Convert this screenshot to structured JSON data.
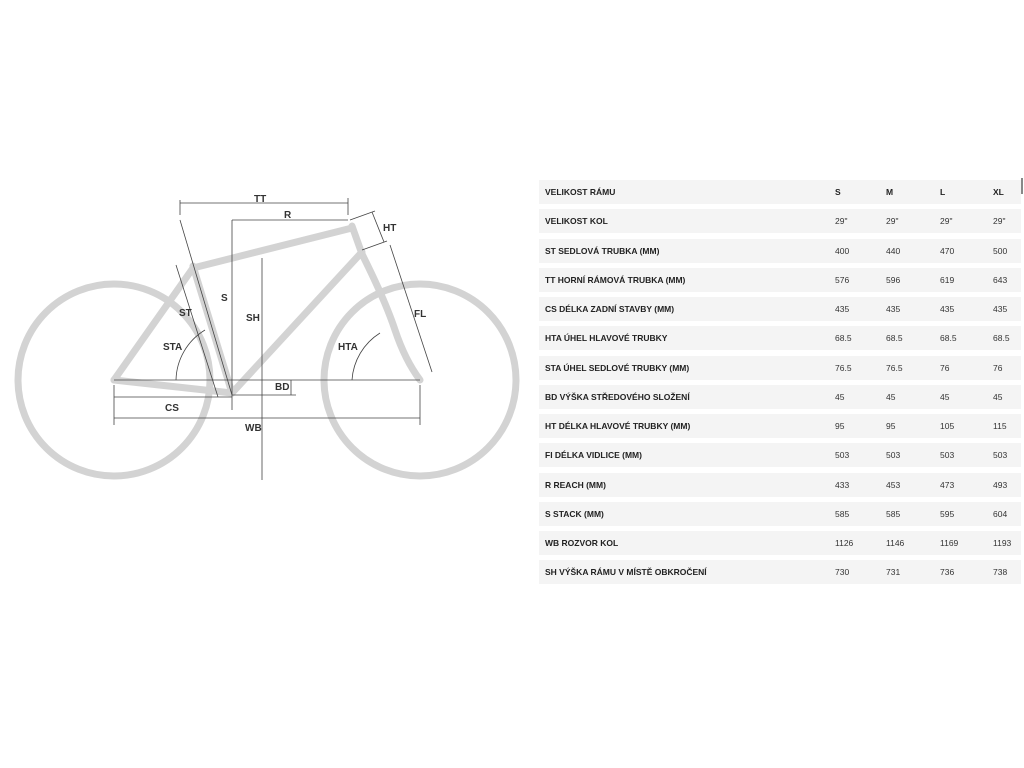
{
  "diagram": {
    "labels": {
      "tt": "TT",
      "r": "R",
      "ht": "HT",
      "s": "S",
      "sh": "SH",
      "st": "ST",
      "sta": "STA",
      "hta": "HTA",
      "fl": "FL",
      "bd": "BD",
      "cs": "CS",
      "wb": "WB"
    },
    "colors": {
      "frame": "#d3d3d3",
      "dimension": "#444444"
    }
  },
  "table": {
    "header": {
      "label": "VELIKOST RÁMU",
      "values": [
        "S",
        "M",
        "L",
        "XL"
      ]
    },
    "rows": [
      {
        "label": "VELIKOST KOL",
        "values": [
          "29\"",
          "29\"",
          "29\"",
          "29\""
        ]
      },
      {
        "label": "ST SEDLOVÁ TRUBKA (MM)",
        "values": [
          "400",
          "440",
          "470",
          "500"
        ]
      },
      {
        "label": "TT HORNÍ RÁMOVÁ TRUBKA (MM)",
        "values": [
          "576",
          "596",
          "619",
          "643"
        ]
      },
      {
        "label": "CS DÉLKA ZADNÍ STAVBY (MM)",
        "values": [
          "435",
          "435",
          "435",
          "435"
        ]
      },
      {
        "label": "HTA ÚHEL HLAVOVÉ TRUBKY",
        "values": [
          "68.5",
          "68.5",
          "68.5",
          "68.5"
        ]
      },
      {
        "label": "STA ÚHEL SEDLOVÉ TRUBKY (MM)",
        "values": [
          "76.5",
          "76.5",
          "76",
          "76"
        ]
      },
      {
        "label": "BD VÝŠKA STŘEDOVÉHO SLOŽENÍ",
        "values": [
          "45",
          "45",
          "45",
          "45"
        ]
      },
      {
        "label": "HT DÉLKA HLAVOVÉ TRUBKY (MM)",
        "values": [
          "95",
          "95",
          "105",
          "115"
        ]
      },
      {
        "label": "FI DÉLKA VIDLICE (MM)",
        "values": [
          "503",
          "503",
          "503",
          "503"
        ]
      },
      {
        "label": "R REACH (MM)",
        "values": [
          "433",
          "453",
          "473",
          "493"
        ]
      },
      {
        "label": "S STACK (MM)",
        "values": [
          "585",
          "585",
          "595",
          "604"
        ]
      },
      {
        "label": "WB ROZVOR KOL",
        "values": [
          "1126",
          "1146",
          "1169",
          "1193"
        ]
      },
      {
        "label": "SH VÝŠKA RÁMU V MÍSTĚ OBKROČENÍ",
        "values": [
          "730",
          "731",
          "736",
          "738"
        ]
      }
    ]
  }
}
